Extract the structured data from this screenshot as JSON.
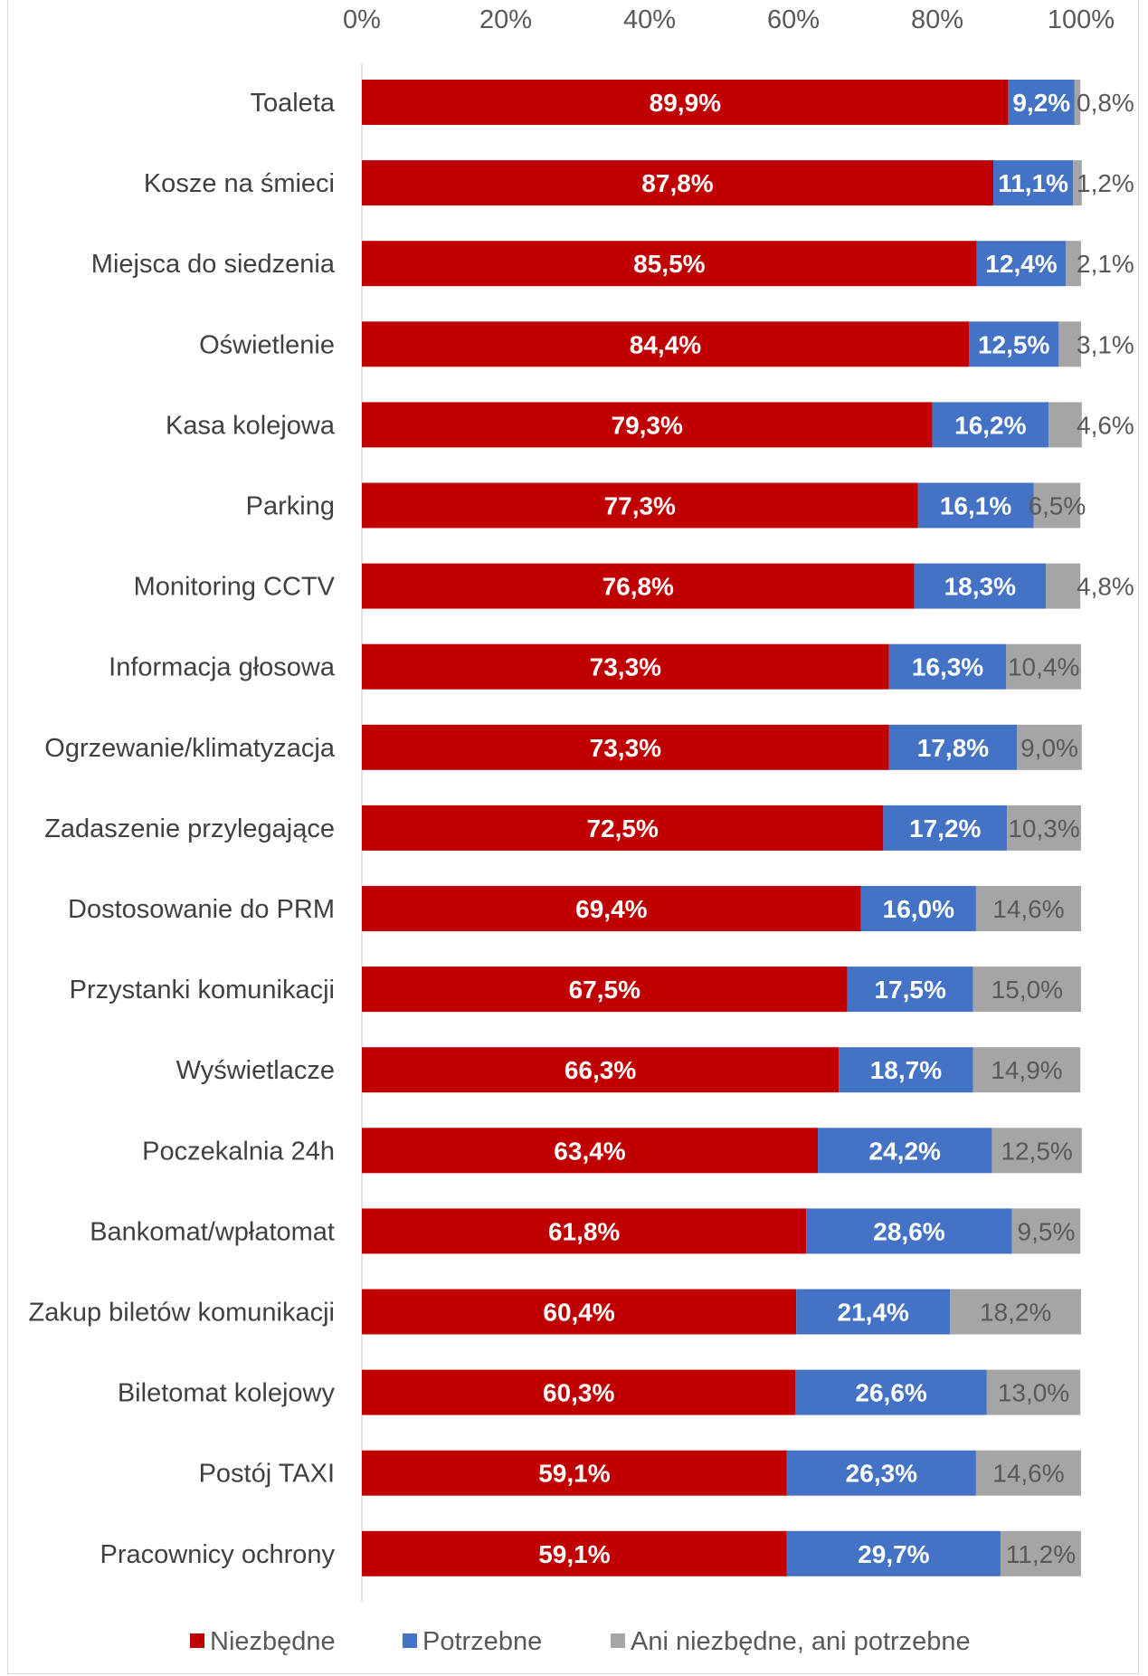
{
  "chart_data": {
    "type": "bar",
    "orientation": "horizontal",
    "stacked": true,
    "percent": true,
    "xlim": [
      0,
      100
    ],
    "xticks": [
      "0%",
      "20%",
      "40%",
      "60%",
      "80%",
      "100%"
    ],
    "x_axis_position": "top",
    "grid": false,
    "legend_position": "bottom",
    "categories": [
      "Toaleta",
      "Kosze na śmieci",
      "Miejsca do siedzenia",
      "Oświetlenie",
      "Kasa kolejowa",
      "Parking",
      "Monitoring CCTV",
      "Informacja głosowa",
      "Ogrzewanie/klimatyzacja",
      "Zadaszenie przylegające",
      "Dostosowanie do PRM",
      "Przystanki komunikacji",
      "Wyświetlacze",
      "Poczekalnia 24h",
      "Bankomat/wpłatomat",
      "Zakup biletów komunikacji",
      "Biletomat kolejowy",
      "Postój TAXI",
      "Pracownicy ochrony"
    ],
    "series": [
      {
        "name": "Niezbędne",
        "color": "#c00000",
        "values": [
          89.9,
          87.8,
          85.5,
          84.4,
          79.3,
          77.3,
          76.8,
          73.3,
          73.3,
          72.5,
          69.4,
          67.5,
          66.3,
          63.4,
          61.8,
          60.4,
          60.3,
          59.1,
          59.1
        ],
        "labels": [
          "89,9%",
          "87,8%",
          "85,5%",
          "84,4%",
          "79,3%",
          "77,3%",
          "76,8%",
          "73,3%",
          "73,3%",
          "72,5%",
          "69,4%",
          "67,5%",
          "66,3%",
          "63,4%",
          "61,8%",
          "60,4%",
          "60,3%",
          "59,1%",
          "59,1%"
        ]
      },
      {
        "name": "Potrzebne",
        "color": "#4472c4",
        "values": [
          9.2,
          11.1,
          12.4,
          12.5,
          16.2,
          16.1,
          18.3,
          16.3,
          17.8,
          17.2,
          16.0,
          17.5,
          18.7,
          24.2,
          28.6,
          21.4,
          26.6,
          26.3,
          29.7
        ],
        "labels": [
          "9,2%",
          "11,1%",
          "12,4%",
          "12,5%",
          "16,2%",
          "16,1%",
          "18,3%",
          "16,3%",
          "17,8%",
          "17,2%",
          "16,0%",
          "17,5%",
          "18,7%",
          "24,2%",
          "28,6%",
          "21,4%",
          "26,6%",
          "26,3%",
          "29,7%"
        ]
      },
      {
        "name": "Ani niezbędne, ani potrzebne",
        "color": "#a5a5a5",
        "values": [
          0.8,
          1.2,
          2.1,
          3.1,
          4.6,
          6.5,
          4.8,
          10.4,
          9.0,
          10.3,
          14.6,
          15.0,
          14.9,
          12.5,
          9.5,
          18.2,
          13.0,
          14.6,
          11.2
        ],
        "labels": [
          "0,8%",
          "1,2%",
          "2,1%",
          "3,1%",
          "4,6%",
          "6,5%",
          "4,8%",
          "10,4%",
          "9,0%",
          "10,3%",
          "14,6%",
          "15,0%",
          "14,9%",
          "12,5%",
          "9,5%",
          "18,2%",
          "13,0%",
          "14,6%",
          "11,2%"
        ]
      }
    ]
  }
}
